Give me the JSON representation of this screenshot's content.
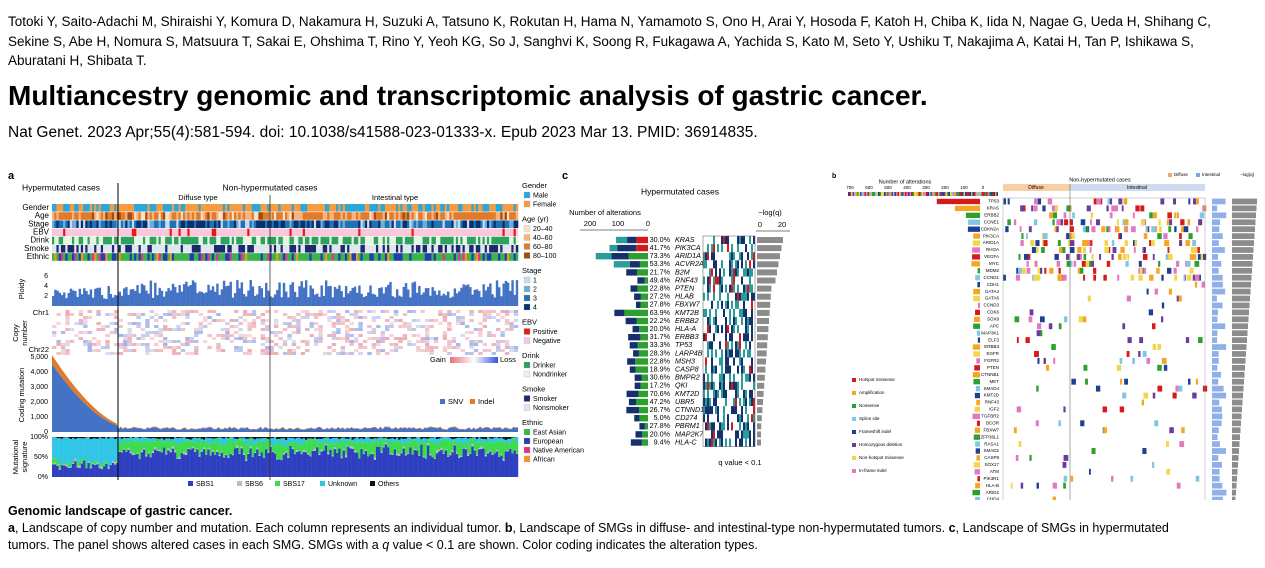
{
  "authors": "Totoki Y, Saito-Adachi M, Shiraishi Y, Komura D, Nakamura H, Suzuki A, Tatsuno K, Rokutan H, Hama N, Yamamoto S, Ono H, Arai Y, Hosoda F, Katoh H, Chiba K, Iida N, Nagae G, Ueda H, Shihang C, Sekine S, Abe H, Nomura S, Matsuura T, Sakai E, Ohshima T, Rino Y, Yeoh KG, So J, Sanghvi K, Soong R, Fukagawa A, Yachida S, Kato M, Seto Y, Ushiku T, Nakajima A, Katai H, Tan P, Ishikawa S, Aburatani H, Shibata T.",
  "title": "Multiancestry genomic and transcriptomic analysis of gastric cancer.",
  "citation": "Nat Genet. 2023 Apr;55(4):581-594. doi: 10.1038/s41588-023-01333-x. Epub 2023 Mar 13. PMID: 36914835.",
  "figure": {
    "a": {
      "label": "a",
      "hypermutated": "Hypermutated cases",
      "non_hypermutated": "Non-hypermutated cases",
      "diffuse": "Diffuse type",
      "intestinal": "Intestinal type",
      "rows": [
        "Gender",
        "Age",
        "Stage",
        "EBV",
        "Drink",
        "Smoke",
        "Ethnic"
      ],
      "ploidy": {
        "label": "Ploidy",
        "ticks": [
          "2",
          "4",
          "6"
        ]
      },
      "copy_number": {
        "label": [
          "Copy",
          "number"
        ],
        "chr_top": "Chr1",
        "chr_bottom": "Chr22",
        "gain": "Gain",
        "loss": "Loss"
      },
      "coding_mutation": {
        "label": "Coding mutation",
        "ticks": [
          "0",
          "1,000",
          "2,000",
          "3,000",
          "4,000",
          "5,000"
        ],
        "snv": "SNV",
        "indel": "Indel"
      },
      "signature": {
        "label": [
          "Mutational",
          "signature"
        ],
        "ticks": [
          "0%",
          "50%",
          "100%"
        ],
        "legend": [
          "SBS1",
          "SBS6",
          "SBS17",
          "Unknown",
          "Others"
        ]
      },
      "legends": [
        {
          "title": "Gender",
          "items": [
            "Male",
            "Female"
          ]
        },
        {
          "title": "Age (yr)",
          "items": [
            "20–40",
            "40–60",
            "60–80",
            "80–100"
          ]
        },
        {
          "title": "Stage",
          "items": [
            "1",
            "2",
            "3",
            "4"
          ]
        },
        {
          "title": "EBV",
          "items": [
            "Positive",
            "Negative"
          ]
        },
        {
          "title": "Drink",
          "items": [
            "Drinker",
            "Nondrinker"
          ]
        },
        {
          "title": "Smoke",
          "items": [
            "Smoker",
            "Nonsmoker"
          ]
        },
        {
          "title": "Ethnic",
          "items": [
            "East Asian",
            "European",
            "Native American",
            "African"
          ]
        }
      ]
    },
    "c": {
      "label": "c",
      "title": "Hypermutated cases",
      "alterations_label": "Number of alterations",
      "alteration_ticks": [
        "200",
        "100",
        "0"
      ],
      "q_label": "−log(q)",
      "q_ticks": [
        "0",
        "20"
      ],
      "genes": [
        {
          "pct": "30.0%",
          "name": "KRAS"
        },
        {
          "pct": "41.7%",
          "name": "PIK3CA"
        },
        {
          "pct": "73.3%",
          "name": "ARID1A"
        },
        {
          "pct": "53.3%",
          "name": "ACVR2A"
        },
        {
          "pct": "21.7%",
          "name": "B2M"
        },
        {
          "pct": "49.4%",
          "name": "RNF43"
        },
        {
          "pct": "22.8%",
          "name": "PTEN"
        },
        {
          "pct": "27.2%",
          "name": "HLAB"
        },
        {
          "pct": "27.8%",
          "name": "FBXW7"
        },
        {
          "pct": "63.9%",
          "name": "KMT2B"
        },
        {
          "pct": "22.2%",
          "name": "ERBB2"
        },
        {
          "pct": "20.0%",
          "name": "HLA-A"
        },
        {
          "pct": "31.7%",
          "name": "ERBB3"
        },
        {
          "pct": "33.3%",
          "name": "TP53"
        },
        {
          "pct": "28.3%",
          "name": "LARP4B"
        },
        {
          "pct": "22.8%",
          "name": "MSH3"
        },
        {
          "pct": "18.9%",
          "name": "CASP8"
        },
        {
          "pct": "30.6%",
          "name": "BMPR2"
        },
        {
          "pct": "17.2%",
          "name": "QKI"
        },
        {
          "pct": "70.6%",
          "name": "KMT2D"
        },
        {
          "pct": "47.2%",
          "name": "UBR5"
        },
        {
          "pct": "26.7%",
          "name": "CTNND1"
        },
        {
          "pct": "5.0%",
          "name": "CD274"
        },
        {
          "pct": "27.8%",
          "name": "PBRM1"
        },
        {
          "pct": "20.0%",
          "name": "MAP2K7"
        },
        {
          "pct": "9.4%",
          "name": "HLA-C"
        }
      ],
      "footnote": "q value < 0.1"
    },
    "b": {
      "label": "b",
      "alterations_label": "Number of alterations",
      "alteration_ticks": [
        "700",
        "600",
        "500",
        "400",
        "300",
        "200",
        "100",
        "0"
      ],
      "title": "Non-hypermutated cases",
      "diffuse": "Diffuse",
      "intestinal": "Intestinal",
      "q_label": "−log(q)",
      "genes": [
        "TP53",
        "KRAS",
        "ERBB2",
        "CCNE1",
        "CDKN2A",
        "PIK3CA",
        "ARID1A",
        "RHOA",
        "VEGFA",
        "MYC",
        "MDM2",
        "CCND1",
        "CDH1",
        "GATA4",
        "GATA6",
        "CCND3",
        "CDK6",
        "SOX9",
        "APC",
        "MAP3K1",
        "ELF3",
        "ERBB3",
        "EGFR",
        "FGFR2",
        "PTEN",
        "CTNNB1",
        "MET",
        "SMAD4",
        "KMT2D",
        "RNF43",
        "IGF2",
        "TGFBR2",
        "BCOR",
        "FBXW7",
        "ZFP36L1",
        "RASA1",
        "SMAD2",
        "CASP8",
        "SOX17",
        "ATM",
        "PIK3R1",
        "HLA-B",
        "ARID2",
        "CHD4"
      ],
      "legend": [
        "Hotspot missense",
        "Amplification",
        "Nonsense",
        "Splice site",
        "Frameshift indel",
        "Homozygous deletion",
        "Non-hotspot missense",
        "In-frame indel"
      ],
      "footnote": "q value < 0.1"
    }
  },
  "caption": {
    "title": "Genomic landscape of gastric cancer.",
    "parts": [
      "a",
      ", Landscape of copy number and mutation. Each column represents an individual tumor. ",
      "b",
      ", Landscape of SMGs in diffuse- and intestinal-type non-hypermutated tumors. ",
      "c",
      ", Landscape of SMGs in hypermutated tumors. The panel shows altered cases in each SMG. SMGs with a ",
      "q",
      " value < 0.1 are shown. Color coding indicates the alteration types."
    ]
  }
}
